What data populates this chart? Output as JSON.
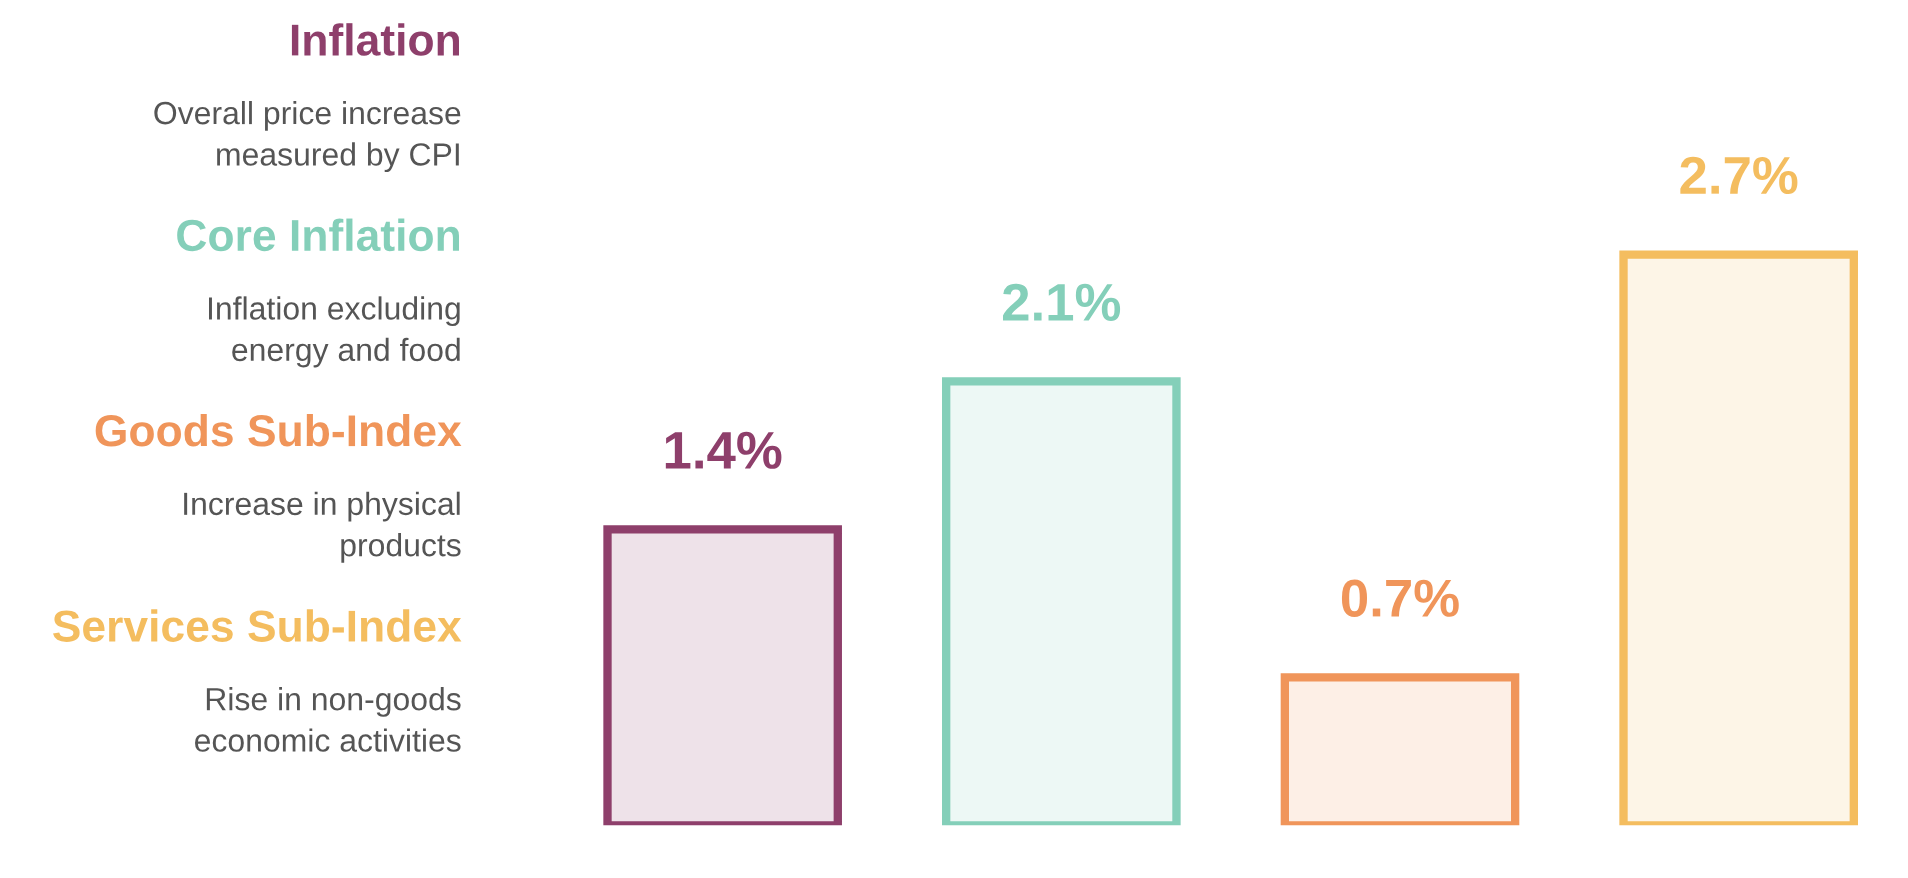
{
  "chart_data": {
    "type": "bar",
    "categories": [
      null,
      null,
      null,
      null
    ],
    "values": [
      1.4,
      2.1,
      0.7,
      2.7
    ],
    "colors": [
      "#8e3f6b",
      "#84cfb9",
      "#f0955a",
      "#f4bd5f"
    ],
    "value_labels": [
      "1.4%",
      "2.1%",
      "0.7%",
      "2.7%"
    ],
    "annotations": [
      "Inflation",
      "Overall price increase\nmeasured by CPI",
      "Core Inflation",
      "Inflation excluding\nenergy and food",
      "Goods Sub-Index",
      "Increase in physical\nproducts",
      "Services Sub-Index",
      "Rise in non-goods\neconomic activities"
    ]
  }
}
